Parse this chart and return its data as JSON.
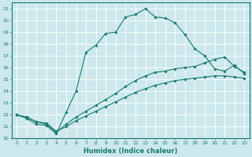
{
  "xlabel": "Humidex (Indice chaleur)",
  "ylabel": "",
  "bg_color": "#cce8ec",
  "line_color": "#1a7a6e",
  "grid_color": "#ffffff",
  "xlim": [
    -0.5,
    23.5
  ],
  "ylim": [
    10,
    21.5
  ],
  "yticks": [
    10,
    11,
    12,
    13,
    14,
    15,
    16,
    17,
    18,
    19,
    20,
    21
  ],
  "xticks": [
    0,
    1,
    2,
    3,
    4,
    5,
    6,
    7,
    8,
    9,
    10,
    11,
    12,
    13,
    14,
    15,
    16,
    17,
    18,
    19,
    20,
    21,
    22,
    23
  ],
  "lines": [
    {
      "x": [
        0,
        1,
        2,
        3,
        4,
        5,
        6,
        7,
        8,
        9,
        10,
        11,
        12,
        13,
        14,
        15,
        16,
        17,
        18,
        19,
        20,
        21,
        22,
        23
      ],
      "y": [
        12,
        11.7,
        11.2,
        11.1,
        10.4,
        12.2,
        14.0,
        17.3,
        17.9,
        18.9,
        19.0,
        20.3,
        20.5,
        21.0,
        20.3,
        20.2,
        19.8,
        18.8,
        17.6,
        17.0,
        15.9,
        15.7,
        16.2,
        15.5
      ]
    },
    {
      "x": [
        0,
        1,
        2,
        3,
        4,
        5,
        6,
        7,
        8,
        9,
        10,
        11,
        12,
        13,
        14,
        15,
        16,
        17,
        18,
        19,
        20,
        21,
        22,
        23
      ],
      "y": [
        12,
        11.8,
        11.4,
        11.2,
        10.5,
        11.2,
        11.8,
        12.3,
        12.8,
        13.3,
        13.8,
        14.4,
        14.9,
        15.3,
        15.6,
        15.7,
        15.9,
        16.0,
        16.1,
        16.4,
        16.7,
        16.9,
        16.1,
        15.6
      ]
    },
    {
      "x": [
        0,
        1,
        2,
        3,
        4,
        5,
        6,
        7,
        8,
        9,
        10,
        11,
        12,
        13,
        14,
        15,
        16,
        17,
        18,
        19,
        20,
        21,
        22,
        23
      ],
      "y": [
        12,
        11.8,
        11.4,
        11.3,
        10.6,
        11.0,
        11.5,
        11.9,
        12.3,
        12.7,
        13.1,
        13.5,
        13.9,
        14.2,
        14.5,
        14.7,
        14.9,
        15.0,
        15.1,
        15.2,
        15.3,
        15.3,
        15.2,
        15.1
      ]
    }
  ]
}
